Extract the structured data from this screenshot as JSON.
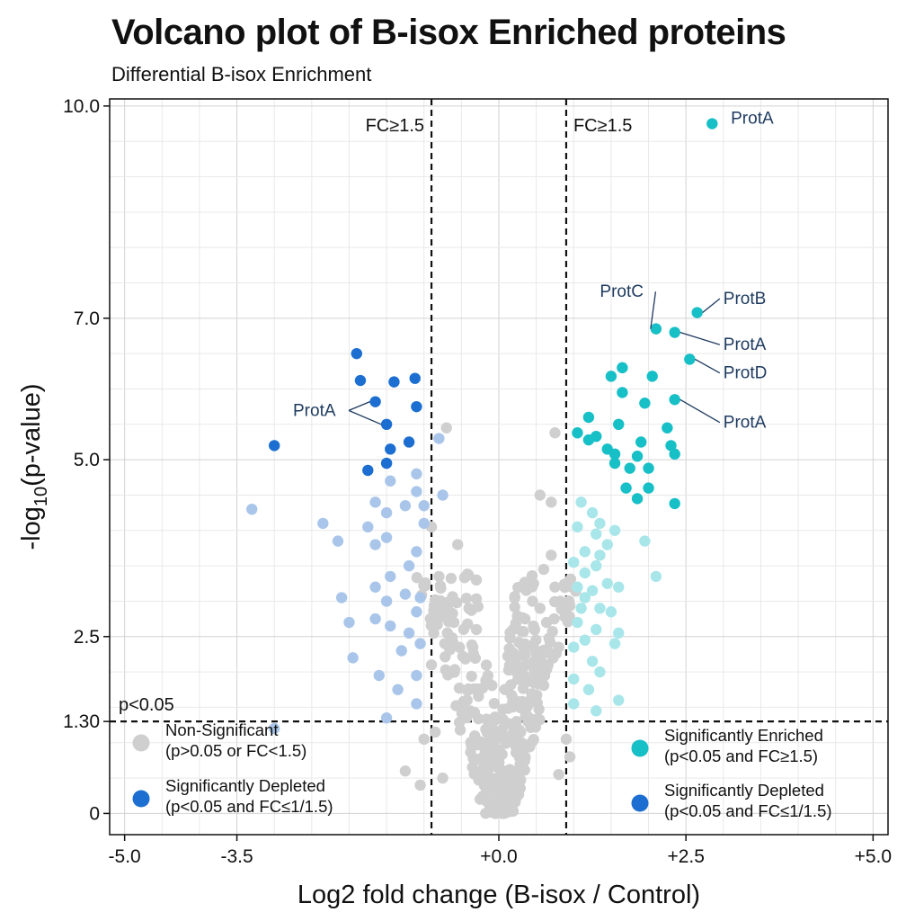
{
  "chart_data": {
    "type": "scatter",
    "title": "Volcano plot of B-isox Enriched proteins",
    "subtitle": "Differential B-isox Enrichment",
    "xlabel": "Log2 fold change (B-isox / Control)",
    "ylabel": {
      "prefix": "-log",
      "sub": "10",
      "suffix": "(p-value)"
    },
    "xlim": [
      -5.2,
      5.2
    ],
    "ylim": [
      -0.3,
      10.1
    ],
    "x_ticks": [
      {
        "value": -5.0,
        "label": "-5.0"
      },
      {
        "value": -3.5,
        "label": "-3.5"
      },
      {
        "value": 0.0,
        "label": "+0.0"
      },
      {
        "value": 2.5,
        "label": "+2.5"
      },
      {
        "value": 5.0,
        "label": "+5.0"
      }
    ],
    "y_ticks": [
      {
        "value": 0,
        "label": "0"
      },
      {
        "value": 1.3,
        "label": "1.30"
      },
      {
        "value": 2.5,
        "label": "2.5"
      },
      {
        "value": 5.0,
        "label": "5.0"
      },
      {
        "value": 7.0,
        "label": "7.0"
      },
      {
        "value": 10.0,
        "label": "10.0"
      }
    ],
    "grid": true,
    "thresholds": {
      "fc_left": -0.9,
      "fc_right": 0.9,
      "p": 1.3,
      "fc_left_label": "FC≥1.5",
      "fc_right_label": "FC≥1.5",
      "p_label": "p<0.05"
    },
    "colors": {
      "nonsig": "#cfcfcf",
      "enriched": "#17bfc6",
      "enriched_light": "#a8e6ea",
      "depleted": "#1c6fd1",
      "depleted_light": "#a9c6ea"
    },
    "legend": {
      "placement": "bottom (inside plot)",
      "items": [
        {
          "name": "Non-Significant",
          "desc": "(p>0.05 or FC<1.5)",
          "color": "#cfcfcf"
        },
        {
          "name": "Significantly Depleted",
          "desc": "(p<0.05 and FC≤1/1.5)",
          "color": "#1c6fd1"
        },
        {
          "name": "Significantly Enriched",
          "desc": "(p<0.05 and FC≥1.5)",
          "color": "#17bfc6"
        },
        {
          "name": "Significantly Depleted",
          "desc": "(p<0.05 and FC≤1/1.5)",
          "color": "#1c6fd1"
        }
      ]
    },
    "series": [
      {
        "group": "enriched",
        "points": [
          [
            2.85,
            9.75
          ],
          [
            2.65,
            7.08
          ],
          [
            2.1,
            6.85
          ],
          [
            2.35,
            6.8
          ],
          [
            2.55,
            6.42
          ],
          [
            1.65,
            6.3
          ],
          [
            1.5,
            6.18
          ],
          [
            2.05,
            6.18
          ],
          [
            1.65,
            5.95
          ],
          [
            1.95,
            5.8
          ],
          [
            2.35,
            5.85
          ],
          [
            1.2,
            5.6
          ],
          [
            1.6,
            5.5
          ],
          [
            2.25,
            5.45
          ],
          [
            1.05,
            5.38
          ],
          [
            1.3,
            5.33
          ],
          [
            1.2,
            5.28
          ],
          [
            1.9,
            5.25
          ],
          [
            2.3,
            5.2
          ],
          [
            1.45,
            5.15
          ],
          [
            1.55,
            5.08
          ],
          [
            1.85,
            5.05
          ],
          [
            2.35,
            5.08
          ],
          [
            1.55,
            4.95
          ],
          [
            1.75,
            4.88
          ],
          [
            2.0,
            4.88
          ],
          [
            1.7,
            4.6
          ],
          [
            2.0,
            4.6
          ],
          [
            1.85,
            4.45
          ],
          [
            2.35,
            4.38
          ]
        ]
      },
      {
        "group": "enriched_light",
        "points": [
          [
            1.1,
            4.4
          ],
          [
            1.25,
            4.25
          ],
          [
            1.05,
            4.05
          ],
          [
            1.3,
            3.95
          ],
          [
            1.35,
            4.1
          ],
          [
            1.55,
            4.0
          ],
          [
            1.95,
            3.85
          ],
          [
            1.45,
            3.8
          ],
          [
            1.15,
            3.7
          ],
          [
            1.35,
            3.65
          ],
          [
            1.0,
            3.55
          ],
          [
            1.3,
            3.5
          ],
          [
            1.15,
            3.4
          ],
          [
            1.05,
            3.2
          ],
          [
            1.45,
            3.25
          ],
          [
            1.25,
            3.15
          ],
          [
            1.6,
            3.2
          ],
          [
            1.15,
            3.05
          ],
          [
            1.35,
            2.9
          ],
          [
            1.5,
            2.85
          ],
          [
            1.05,
            2.7
          ],
          [
            1.3,
            2.6
          ],
          [
            1.6,
            2.55
          ],
          [
            1.15,
            2.45
          ],
          [
            1.0,
            2.35
          ],
          [
            1.25,
            2.15
          ],
          [
            1.35,
            2.0
          ],
          [
            1.0,
            1.9
          ],
          [
            1.2,
            1.75
          ],
          [
            1.6,
            1.6
          ],
          [
            1.0,
            1.55
          ],
          [
            1.3,
            1.45
          ],
          [
            1.1,
            2.9
          ],
          [
            1.55,
            2.4
          ],
          [
            2.1,
            3.35
          ]
        ]
      },
      {
        "group": "depleted",
        "points": [
          [
            -1.9,
            6.5
          ],
          [
            -1.85,
            6.12
          ],
          [
            -1.4,
            6.1
          ],
          [
            -1.12,
            6.15
          ],
          [
            -1.65,
            5.82
          ],
          [
            -1.1,
            5.75
          ],
          [
            -1.5,
            5.5
          ],
          [
            -3.0,
            5.2
          ],
          [
            -1.2,
            5.25
          ],
          [
            -1.45,
            5.15
          ],
          [
            -1.5,
            4.95
          ],
          [
            -1.75,
            4.85
          ]
        ]
      },
      {
        "group": "depleted_light",
        "points": [
          [
            -0.8,
            5.3
          ],
          [
            -1.1,
            4.8
          ],
          [
            -1.45,
            4.7
          ],
          [
            -0.75,
            4.5
          ],
          [
            -1.1,
            4.55
          ],
          [
            -1.25,
            4.35
          ],
          [
            -1.65,
            4.4
          ],
          [
            -1.5,
            4.25
          ],
          [
            -1.0,
            4.35
          ],
          [
            -3.3,
            4.3
          ],
          [
            -1.0,
            4.1
          ],
          [
            -1.75,
            4.05
          ],
          [
            -2.35,
            4.1
          ],
          [
            -1.5,
            3.9
          ],
          [
            -2.15,
            3.85
          ],
          [
            -1.1,
            3.7
          ],
          [
            -1.65,
            3.8
          ],
          [
            -1.2,
            3.5
          ],
          [
            -1.45,
            3.35
          ],
          [
            -1.65,
            3.2
          ],
          [
            -1.25,
            3.1
          ],
          [
            -1.05,
            3.05
          ],
          [
            -2.1,
            3.05
          ],
          [
            -1.5,
            3.0
          ],
          [
            -1.1,
            2.85
          ],
          [
            -1.65,
            2.75
          ],
          [
            -1.45,
            2.65
          ],
          [
            -2.0,
            2.7
          ],
          [
            -1.2,
            2.55
          ],
          [
            -1.05,
            2.4
          ],
          [
            -1.95,
            2.2
          ],
          [
            -1.3,
            2.3
          ],
          [
            -1.6,
            1.95
          ],
          [
            -1.1,
            1.95
          ],
          [
            -1.35,
            1.75
          ],
          [
            -1.1,
            1.55
          ],
          [
            -1.5,
            1.35
          ],
          [
            -3.0,
            1.2
          ]
        ]
      },
      {
        "group": "nonsig",
        "points": [
          [
            -0.7,
            5.45
          ],
          [
            0.75,
            5.38
          ],
          [
            0.55,
            4.5
          ],
          [
            0.7,
            4.4
          ],
          [
            -0.9,
            4.05
          ],
          [
            0.7,
            3.65
          ],
          [
            -0.55,
            3.8
          ],
          [
            0.6,
            3.45
          ],
          [
            -0.8,
            3.35
          ],
          [
            0.75,
            3.2
          ],
          [
            -0.3,
            3.3
          ],
          [
            0.45,
            3.0
          ],
          [
            -0.4,
            2.9
          ],
          [
            0.35,
            2.75
          ],
          [
            -0.3,
            2.6
          ],
          [
            0.55,
            2.9
          ],
          [
            -0.6,
            2.7
          ],
          [
            -1.0,
            1.05
          ],
          [
            -1.25,
            0.6
          ],
          [
            -1.05,
            0.4
          ],
          [
            -0.85,
            1.15
          ],
          [
            1.85,
            0.95
          ],
          [
            0.9,
            1.05
          ],
          [
            0.95,
            0.8
          ],
          [
            -0.75,
            0.5
          ],
          [
            0.8,
            0.55
          ],
          [
            -0.25,
            0.2
          ],
          [
            0.2,
            0.25
          ],
          [
            0.0,
            0.05
          ],
          [
            -0.1,
            0.5
          ],
          [
            0.1,
            0.6
          ],
          [
            -0.05,
            0.0
          ],
          [
            -0.9,
            2.1
          ],
          [
            0.8,
            2.35
          ]
        ]
      }
    ],
    "volcano_cloud": {
      "description_count": 380
    },
    "labels": [
      {
        "text": "ProtA",
        "x": 2.85,
        "y": 9.75,
        "lx": 3.1,
        "ly": 9.75,
        "leader": false
      },
      {
        "text": "ProtB",
        "x": 2.65,
        "y": 7.08,
        "lx": 3.0,
        "ly": 7.2,
        "leader": true
      },
      {
        "text": "ProtC",
        "x": 2.1,
        "y": 6.85,
        "lx": 1.35,
        "ly": 7.3,
        "leader": true
      },
      {
        "text": "ProtA",
        "x": 2.35,
        "y": 6.8,
        "lx": 3.0,
        "ly": 6.55,
        "leader": true
      },
      {
        "text": "ProtD",
        "x": 2.55,
        "y": 6.42,
        "lx": 3.0,
        "ly": 6.15,
        "leader": true
      },
      {
        "text": "ProtA",
        "x": 2.35,
        "y": 5.85,
        "lx": 3.0,
        "ly": 5.45,
        "leader": true
      },
      {
        "text": "ProtA",
        "x": -1.65,
        "y": 5.82,
        "lx": -2.75,
        "ly": 5.62,
        "leader": true
      },
      {
        "text": "ProtA",
        "x": -1.5,
        "y": 5.5,
        "lx": -2.75,
        "ly": 5.62,
        "leader": true,
        "hidden_text": true
      }
    ]
  }
}
